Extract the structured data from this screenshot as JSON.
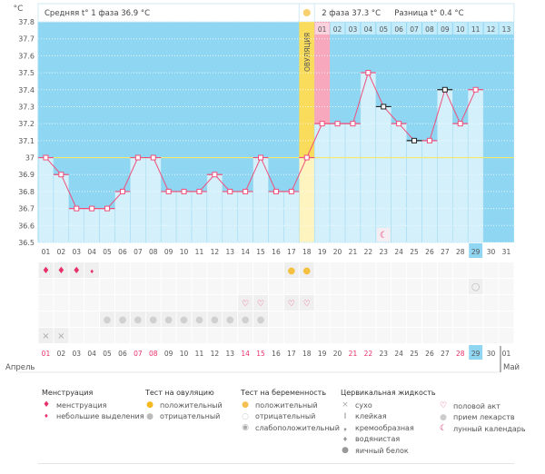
{
  "header": {
    "unit": "°C",
    "phase1": "Средняя t° 1 фаза 36.9 °C",
    "phase2": "2 фаза 37.3 °C",
    "diff": "Разница t° 0.4 °C",
    "ovulation": "ОВУЛЯЦИЯ"
  },
  "chart_data": {
    "type": "line",
    "ylabel": "°C",
    "ylim": [
      36.5,
      37.8
    ],
    "yticks": [
      "37.8",
      "37.7",
      "37.6",
      "37.5",
      "37.4",
      "37.3",
      "37.2",
      "37.1",
      "37",
      "36.9",
      "36.8",
      "36.7",
      "36.6",
      "36.5"
    ],
    "coverline": 37.0,
    "days": [
      "01",
      "02",
      "03",
      "04",
      "05",
      "06",
      "07",
      "08",
      "09",
      "10",
      "11",
      "12",
      "13",
      "14",
      "15",
      "16",
      "17",
      "18",
      "19",
      "20",
      "21",
      "22",
      "23",
      "24",
      "25",
      "26",
      "27",
      "28",
      "29",
      "30",
      "31"
    ],
    "temps": [
      37.0,
      36.9,
      36.7,
      36.7,
      36.7,
      36.8,
      37.0,
      37.0,
      36.8,
      36.8,
      36.8,
      36.9,
      36.8,
      36.8,
      37.0,
      36.8,
      36.8,
      37.0,
      37.2,
      37.2,
      37.2,
      37.5,
      37.3,
      37.2,
      37.1,
      37.1,
      37.4,
      37.2,
      37.4,
      null,
      null
    ],
    "black_marker_days": [
      "23",
      "25",
      "27"
    ],
    "ovulation_day": "18",
    "today": "29",
    "phase2_labels": [
      "01",
      "02",
      "03",
      "04",
      "05",
      "06",
      "07",
      "08",
      "09",
      "10",
      "11",
      "12",
      "13"
    ],
    "moon_day": "23"
  },
  "rows": {
    "menstruation": {
      "01": "heavy",
      "02": "heavy",
      "03": "heavy",
      "04": "light"
    },
    "ovulation_test": [
      "17",
      "18"
    ],
    "pregnancy_test": [
      "29"
    ],
    "intercourse": [
      "14",
      "15",
      "17",
      "18"
    ],
    "medication": [
      "05",
      "06",
      "07",
      "08",
      "09",
      "10",
      "11",
      "12",
      "13",
      "14",
      "15"
    ],
    "dry": [
      "01",
      "02"
    ]
  },
  "bottom_dates": [
    "01",
    "02",
    "03",
    "04",
    "05",
    "06",
    "07",
    "08",
    "09",
    "10",
    "11",
    "12",
    "13",
    "14",
    "15",
    "16",
    "17",
    "18",
    "19",
    "20",
    "21",
    "22",
    "23",
    "24",
    "25",
    "26",
    "27",
    "28",
    "29",
    "30",
    "01"
  ],
  "weekend_dates": [
    "01",
    "07",
    "08",
    "14",
    "15",
    "21",
    "22",
    "28"
  ],
  "months": {
    "april": "Апрель",
    "may": "Май"
  },
  "legend": {
    "menstruation": {
      "title": "Менструация",
      "items": [
        "менструация",
        "небольшие выделения"
      ]
    },
    "ovulation": {
      "title": "Тест на овуляцию",
      "items": [
        "положительный",
        "отрицательный"
      ]
    },
    "pregnancy": {
      "title": "Тест на беременность",
      "items": [
        "положительный",
        "отрицательный",
        "слабоположительный"
      ]
    },
    "cervical": {
      "title": "Цервикальная жидкость",
      "items": [
        "сухо",
        "клейкая",
        "кремообразная",
        "водянистая",
        "яичный белок"
      ]
    },
    "other": {
      "items": [
        "половой акт",
        "прием лекарств",
        "лунный календарь"
      ]
    }
  },
  "colors": {
    "bg": "#8fd6f2",
    "bar": "#d3f0fb",
    "line": "#ef4f7a",
    "cover": "#f6e86a",
    "ovul": "#fbe98e",
    "pink": "#f7a8bd",
    "today": "#8fd6f2"
  }
}
